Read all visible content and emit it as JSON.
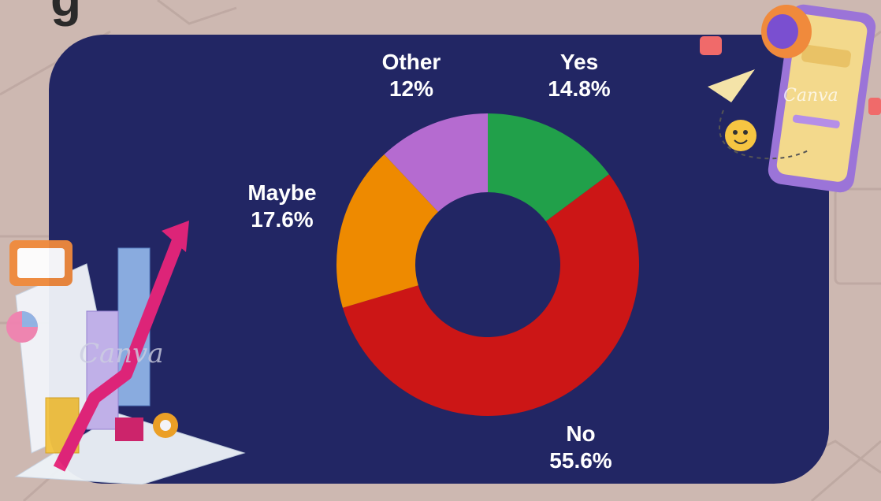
{
  "header": {
    "title_fragment": "g"
  },
  "chart_data": {
    "type": "pie",
    "variant": "donut",
    "categories": [
      "Yes",
      "No",
      "Maybe",
      "Other"
    ],
    "values": [
      14.8,
      55.6,
      17.6,
      12
    ],
    "value_labels": [
      "14.8%",
      "55.6%",
      "17.6%",
      "12%"
    ],
    "colors": [
      "#21a04a",
      "#cc1616",
      "#ee8a00",
      "#b56bd0"
    ],
    "title": ""
  },
  "decorations": {
    "watermark": "Canva",
    "left_icon": "analytics-report-illustration",
    "right_icon": "phone-megaphone-illustration"
  }
}
